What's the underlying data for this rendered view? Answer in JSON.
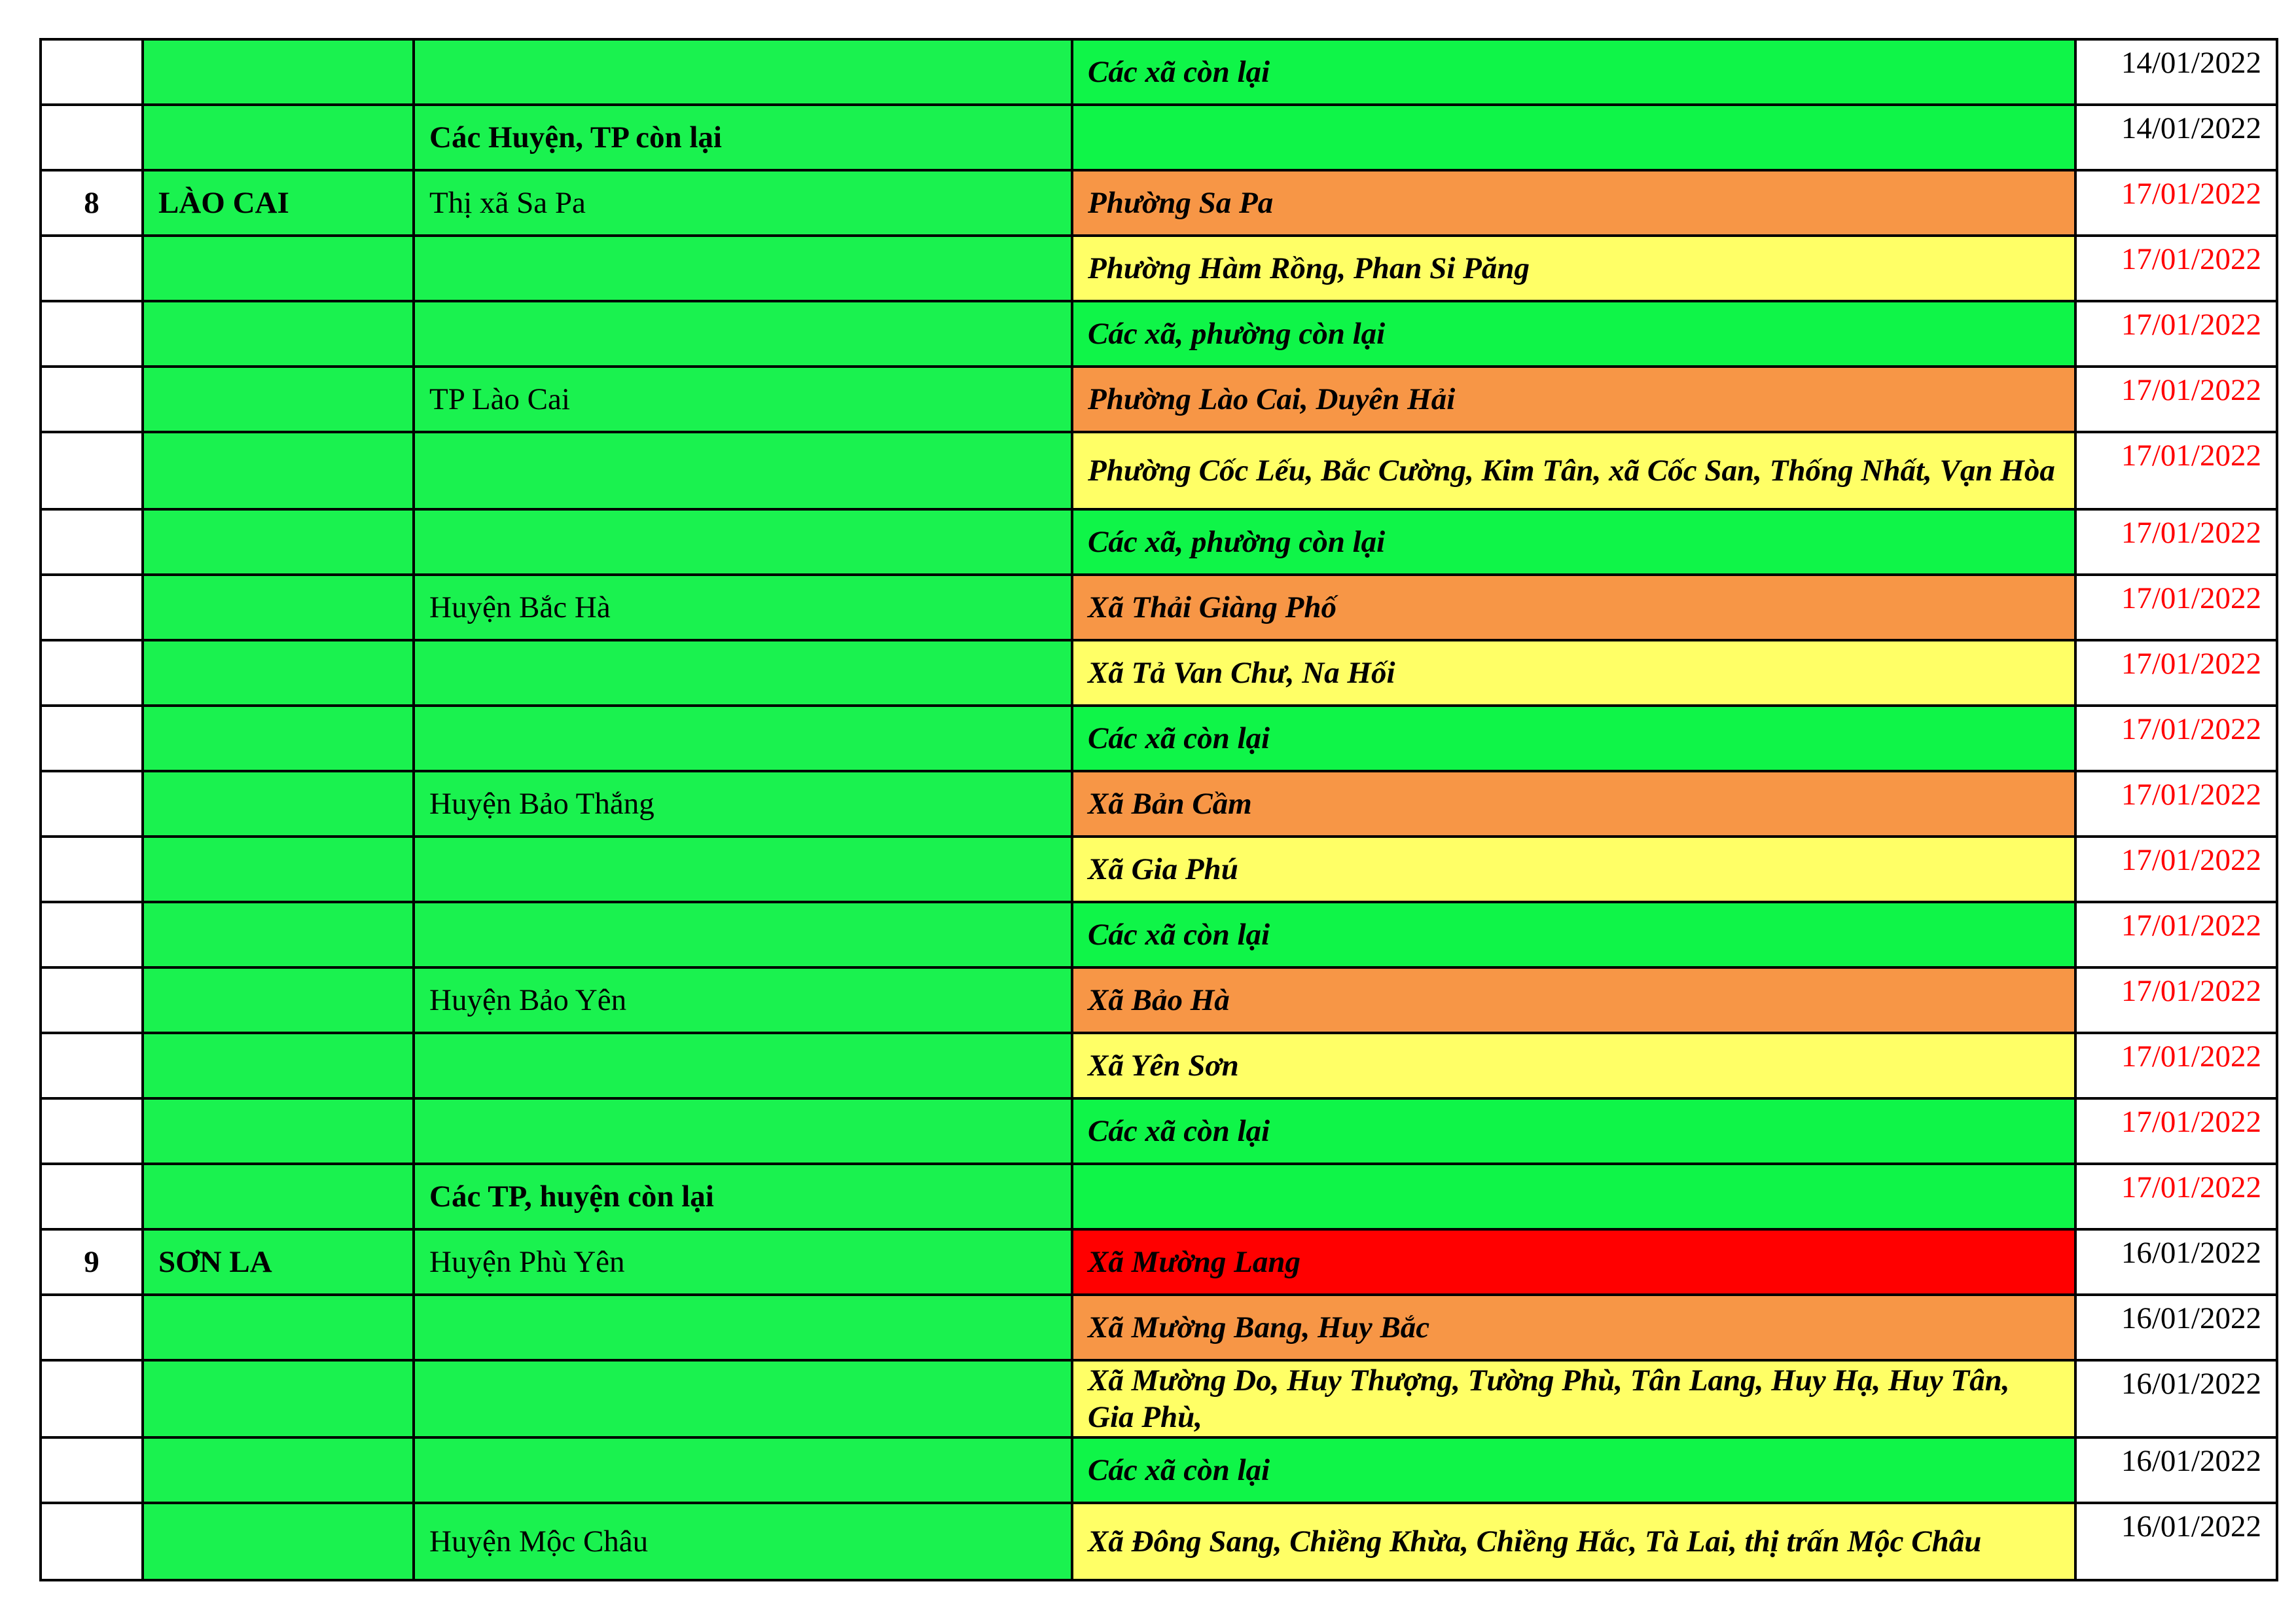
{
  "colors": {
    "green": "#0ff548",
    "orange": "#f79646",
    "yellow": "#ffff66",
    "red": "#ff0000",
    "date_red": "#ff0000"
  },
  "rows": [
    {
      "no": "",
      "province": "",
      "district": "",
      "commune": "Các xã còn lại",
      "level": "green",
      "date": "14/01/2022",
      "date_color": "black"
    },
    {
      "no": "",
      "province": "",
      "district": "Các Huyện, TP còn lại",
      "district_bold": true,
      "commune": "",
      "level": "green",
      "date": "14/01/2022",
      "date_color": "black"
    },
    {
      "no": "8",
      "province": "LÀO CAI",
      "district": "Thị xã Sa Pa",
      "commune": "Phường Sa Pa",
      "level": "orange",
      "date": "17/01/2022",
      "date_color": "red"
    },
    {
      "no": "",
      "province": "",
      "district": "",
      "commune": "Phường Hàm Rồng, Phan Si Păng",
      "level": "yellow",
      "date": "17/01/2022",
      "date_color": "red"
    },
    {
      "no": "",
      "province": "",
      "district": "",
      "commune": "Các xã, phường còn lại",
      "level": "green",
      "date": "17/01/2022",
      "date_color": "red"
    },
    {
      "no": "",
      "province": "",
      "district": "TP Lào Cai",
      "commune": "Phường Lào Cai, Duyên Hải",
      "level": "orange",
      "date": "17/01/2022",
      "date_color": "red"
    },
    {
      "no": "",
      "province": "",
      "district": "",
      "commune": "Phường Cốc Lếu, Bắc Cường, Kim Tân, xã Cốc San, Thống Nhất, Vạn Hòa",
      "level": "yellow",
      "date": "17/01/2022",
      "date_color": "red"
    },
    {
      "no": "",
      "province": "",
      "district": "",
      "commune": "Các xã, phường còn lại",
      "level": "green",
      "date": "17/01/2022",
      "date_color": "red"
    },
    {
      "no": "",
      "province": "",
      "district": "Huyện Bắc Hà",
      "commune": "Xã Thải Giàng Phố",
      "level": "orange",
      "date": "17/01/2022",
      "date_color": "red"
    },
    {
      "no": "",
      "province": "",
      "district": "",
      "commune": "Xã Tả Van Chư, Na Hối",
      "level": "yellow",
      "date": "17/01/2022",
      "date_color": "red"
    },
    {
      "no": "",
      "province": "",
      "district": "",
      "commune": "Các xã còn lại",
      "level": "green",
      "date": "17/01/2022",
      "date_color": "red"
    },
    {
      "no": "",
      "province": "",
      "district": "Huyện Bảo Thắng",
      "commune": "Xã Bản Cầm",
      "level": "orange",
      "date": "17/01/2022",
      "date_color": "red"
    },
    {
      "no": "",
      "province": "",
      "district": "",
      "commune": "Xã Gia Phú",
      "level": "yellow",
      "date": "17/01/2022",
      "date_color": "red"
    },
    {
      "no": "",
      "province": "",
      "district": "",
      "commune": "Các xã còn lại",
      "level": "green",
      "date": "17/01/2022",
      "date_color": "red"
    },
    {
      "no": "",
      "province": "",
      "district": "Huyện Bảo Yên",
      "commune": "Xã Bảo Hà",
      "level": "orange",
      "date": "17/01/2022",
      "date_color": "red"
    },
    {
      "no": "",
      "province": "",
      "district": "",
      "commune": "Xã Yên Sơn",
      "level": "yellow",
      "date": "17/01/2022",
      "date_color": "red"
    },
    {
      "no": "",
      "province": "",
      "district": "",
      "commune": "Các xã còn lại",
      "level": "green",
      "date": "17/01/2022",
      "date_color": "red"
    },
    {
      "no": "",
      "province": "",
      "district": "Các TP, huyện còn lại",
      "district_bold": true,
      "commune": "",
      "level": "green",
      "date": "17/01/2022",
      "date_color": "red"
    },
    {
      "no": "9",
      "province": "SƠN LA",
      "district": "Huyện Phù Yên",
      "commune": "Xã Mường Lang",
      "level": "red",
      "date": "16/01/2022",
      "date_color": "black"
    },
    {
      "no": "",
      "province": "",
      "district": "",
      "commune": "Xã Mường Bang, Huy Bắc",
      "level": "orange",
      "date": "16/01/2022",
      "date_color": "black"
    },
    {
      "no": "",
      "province": "",
      "district": "",
      "commune": "Xã Mường Do, Huy Thượng, Tường Phù, Tân Lang, Huy Hạ, Huy Tân, Gia Phù,",
      "level": "yellow",
      "date": "16/01/2022",
      "date_color": "black"
    },
    {
      "no": "",
      "province": "",
      "district": "",
      "commune": "Các xã còn lại",
      "level": "green",
      "date": "16/01/2022",
      "date_color": "black"
    },
    {
      "no": "",
      "province": "",
      "district": "Huyện Mộc Châu",
      "commune": "Xã Đông Sang, Chiềng Khừa, Chiềng Hắc, Tà Lai, thị trấn Mộc Châu",
      "level": "yellow",
      "date": "16/01/2022",
      "date_color": "black"
    }
  ]
}
